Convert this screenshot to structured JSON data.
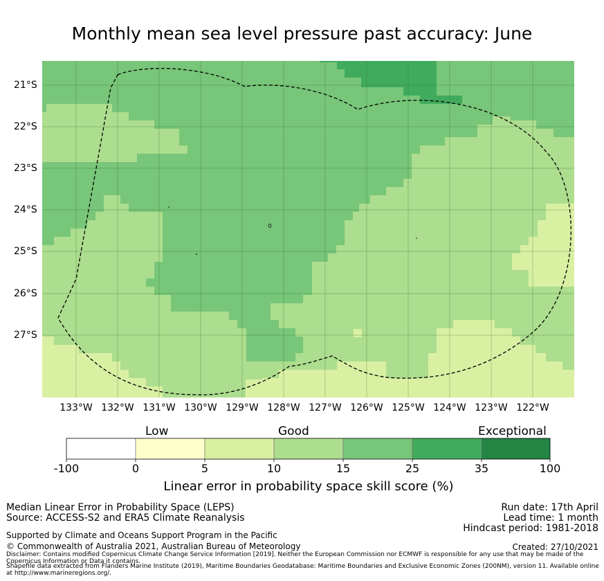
{
  "title": "Monthly mean sea level pressure past accuracy: June",
  "map": {
    "lat_labels": [
      "21°S",
      "22°S",
      "23°S",
      "24°S",
      "25°S",
      "26°S",
      "27°S"
    ],
    "lon_labels": [
      "133°W",
      "132°W",
      "131°W",
      "130°W",
      "129°W",
      "128°W",
      "127°W",
      "126°W",
      "125°W",
      "124°W",
      "123°W",
      "122°W"
    ]
  },
  "colorbar": {
    "categories": [
      "Low",
      "Good",
      "Exceptional"
    ],
    "ticks": [
      "-100",
      "0",
      "5",
      "10",
      "15",
      "25",
      "35",
      "100"
    ],
    "colors": [
      "#ffffff",
      "#ffffcc",
      "#d9f0a3",
      "#addd8e",
      "#78c679",
      "#41ab5d",
      "#238443"
    ],
    "label": "Linear error in probability space skill score (%)"
  },
  "footer": {
    "left_line1": "Median Linear Error in Probability Space (LEPS)",
    "left_line2": "Source: ACCESS-S2 and ERA5 Climate Reanalysis",
    "support": "Supported by Climate and Oceans Support Program in the Pacific",
    "copyright": "© Commonwealth of Australia 2021, Australian Bureau of Meteorology",
    "disclaimer": "Disclaimer: Contains modified Copernicus Climate Change Service Information [2019]. Neither the European Commission nor ECMWF is responsible for any use that may be made of the Copernicus Information or Data it contains.",
    "shapefile": "Shapefile data extracted from Flanders Marine Institute (2019), Maritime Boundaries Geodatabase: Maritime Boundaries and Exclusive Economic Zones (200NM), version 11. Available online at http://www.marineregions.org/.",
    "run_date": "Run date: 17th April",
    "lead_time": "Lead time: 1 month",
    "hindcast": "Hindcast period: 1981-2018",
    "created": "Created: 27/10/2021"
  }
}
